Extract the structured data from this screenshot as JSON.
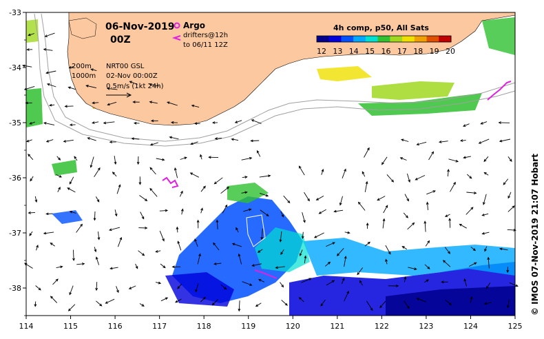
{
  "title": {
    "date": "06-Nov-2019",
    "time": "00Z"
  },
  "legend": {
    "argo_label": "Argo",
    "drifters_label": "drifters@12h",
    "drifters_to": "to 06/11 12Z",
    "argo_color": "#e020e0",
    "drifter_color": "#e020e0"
  },
  "info": {
    "depth_200": "200m",
    "depth_1000": "1000m",
    "source": "NRT00 GSL",
    "source_date": "02-Nov 00:00Z",
    "scale": "0.5m/s (1kt 24h)"
  },
  "colorbar": {
    "title": "4h comp, p50, All Sats",
    "ticks": [
      "12",
      "13",
      "14",
      "15",
      "16",
      "17",
      "18",
      "19",
      "20"
    ],
    "colors": [
      "#00008c",
      "#0000dc",
      "#0050ff",
      "#00a8ff",
      "#00e0d0",
      "#30c030",
      "#a0d820",
      "#f0e000",
      "#f0a000",
      "#e05000",
      "#c00000"
    ]
  },
  "axes": {
    "x_ticks": [
      "114",
      "115",
      "116",
      "117",
      "118",
      "119",
      "120",
      "121",
      "122",
      "123",
      "124",
      "125"
    ],
    "y_ticks": [
      "-33",
      "-34",
      "-35",
      "-36",
      "-37",
      "-38"
    ],
    "xlim": [
      114,
      125
    ],
    "ylim": [
      -38.5,
      -33
    ]
  },
  "credit": "© IMOS 07-Nov-2019 21:07 Hobart",
  "colors": {
    "land": "#fcc8a0",
    "contour": "#a0a0a0",
    "frame": "#000000"
  }
}
